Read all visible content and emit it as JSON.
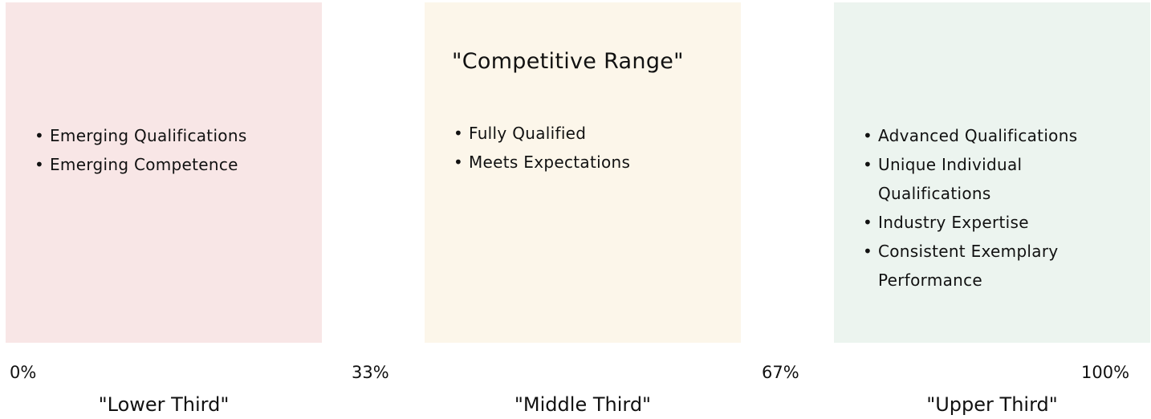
{
  "columns": [
    {
      "bullets": [
        "Emerging Qualifications",
        "Emerging Competence"
      ],
      "label": "\"Lower Third\""
    },
    {
      "title": "\"Competitive Range\"",
      "bullets": [
        "Fully Qualified",
        "Meets Expectations"
      ],
      "label": "\"Middle Third\""
    },
    {
      "bullets": [
        "Advanced Qualifications",
        "Unique Individual Qualifications",
        "Industry Expertise",
        "Consistent Exemplary Performance"
      ],
      "label": "\"Upper Third\""
    }
  ],
  "markers": [
    "0%",
    "33%",
    "67%",
    "100%"
  ]
}
